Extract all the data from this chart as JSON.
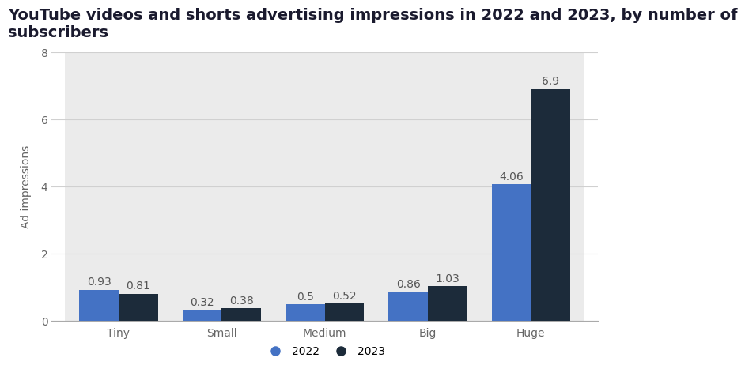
{
  "title": "YouTube videos and shorts advertising impressions in 2022 and 2023, by number of\nsubscribers",
  "categories": [
    "Tiny",
    "Small",
    "Medium",
    "Big",
    "Huge"
  ],
  "values_2022": [
    0.93,
    0.32,
    0.5,
    0.86,
    4.06
  ],
  "values_2023": [
    0.81,
    0.38,
    0.52,
    1.03,
    6.9
  ],
  "color_2022": "#4472C4",
  "color_2023": "#1C2B3A",
  "ylabel": "Ad impressions",
  "ylim": [
    0,
    8
  ],
  "yticks": [
    0,
    2,
    4,
    6,
    8
  ],
  "bar_width": 0.38,
  "background_color": "#ffffff",
  "plot_bg_color": "#ffffff",
  "column_bg_color": "#ebebeb",
  "grid_color": "#d0d0d0",
  "title_fontsize": 14,
  "label_fontsize": 10,
  "tick_fontsize": 10,
  "value_fontsize": 10,
  "legend_labels": [
    "2022",
    "2023"
  ],
  "title_color": "#1a1a2e",
  "tick_color": "#666666",
  "value_color": "#555555"
}
